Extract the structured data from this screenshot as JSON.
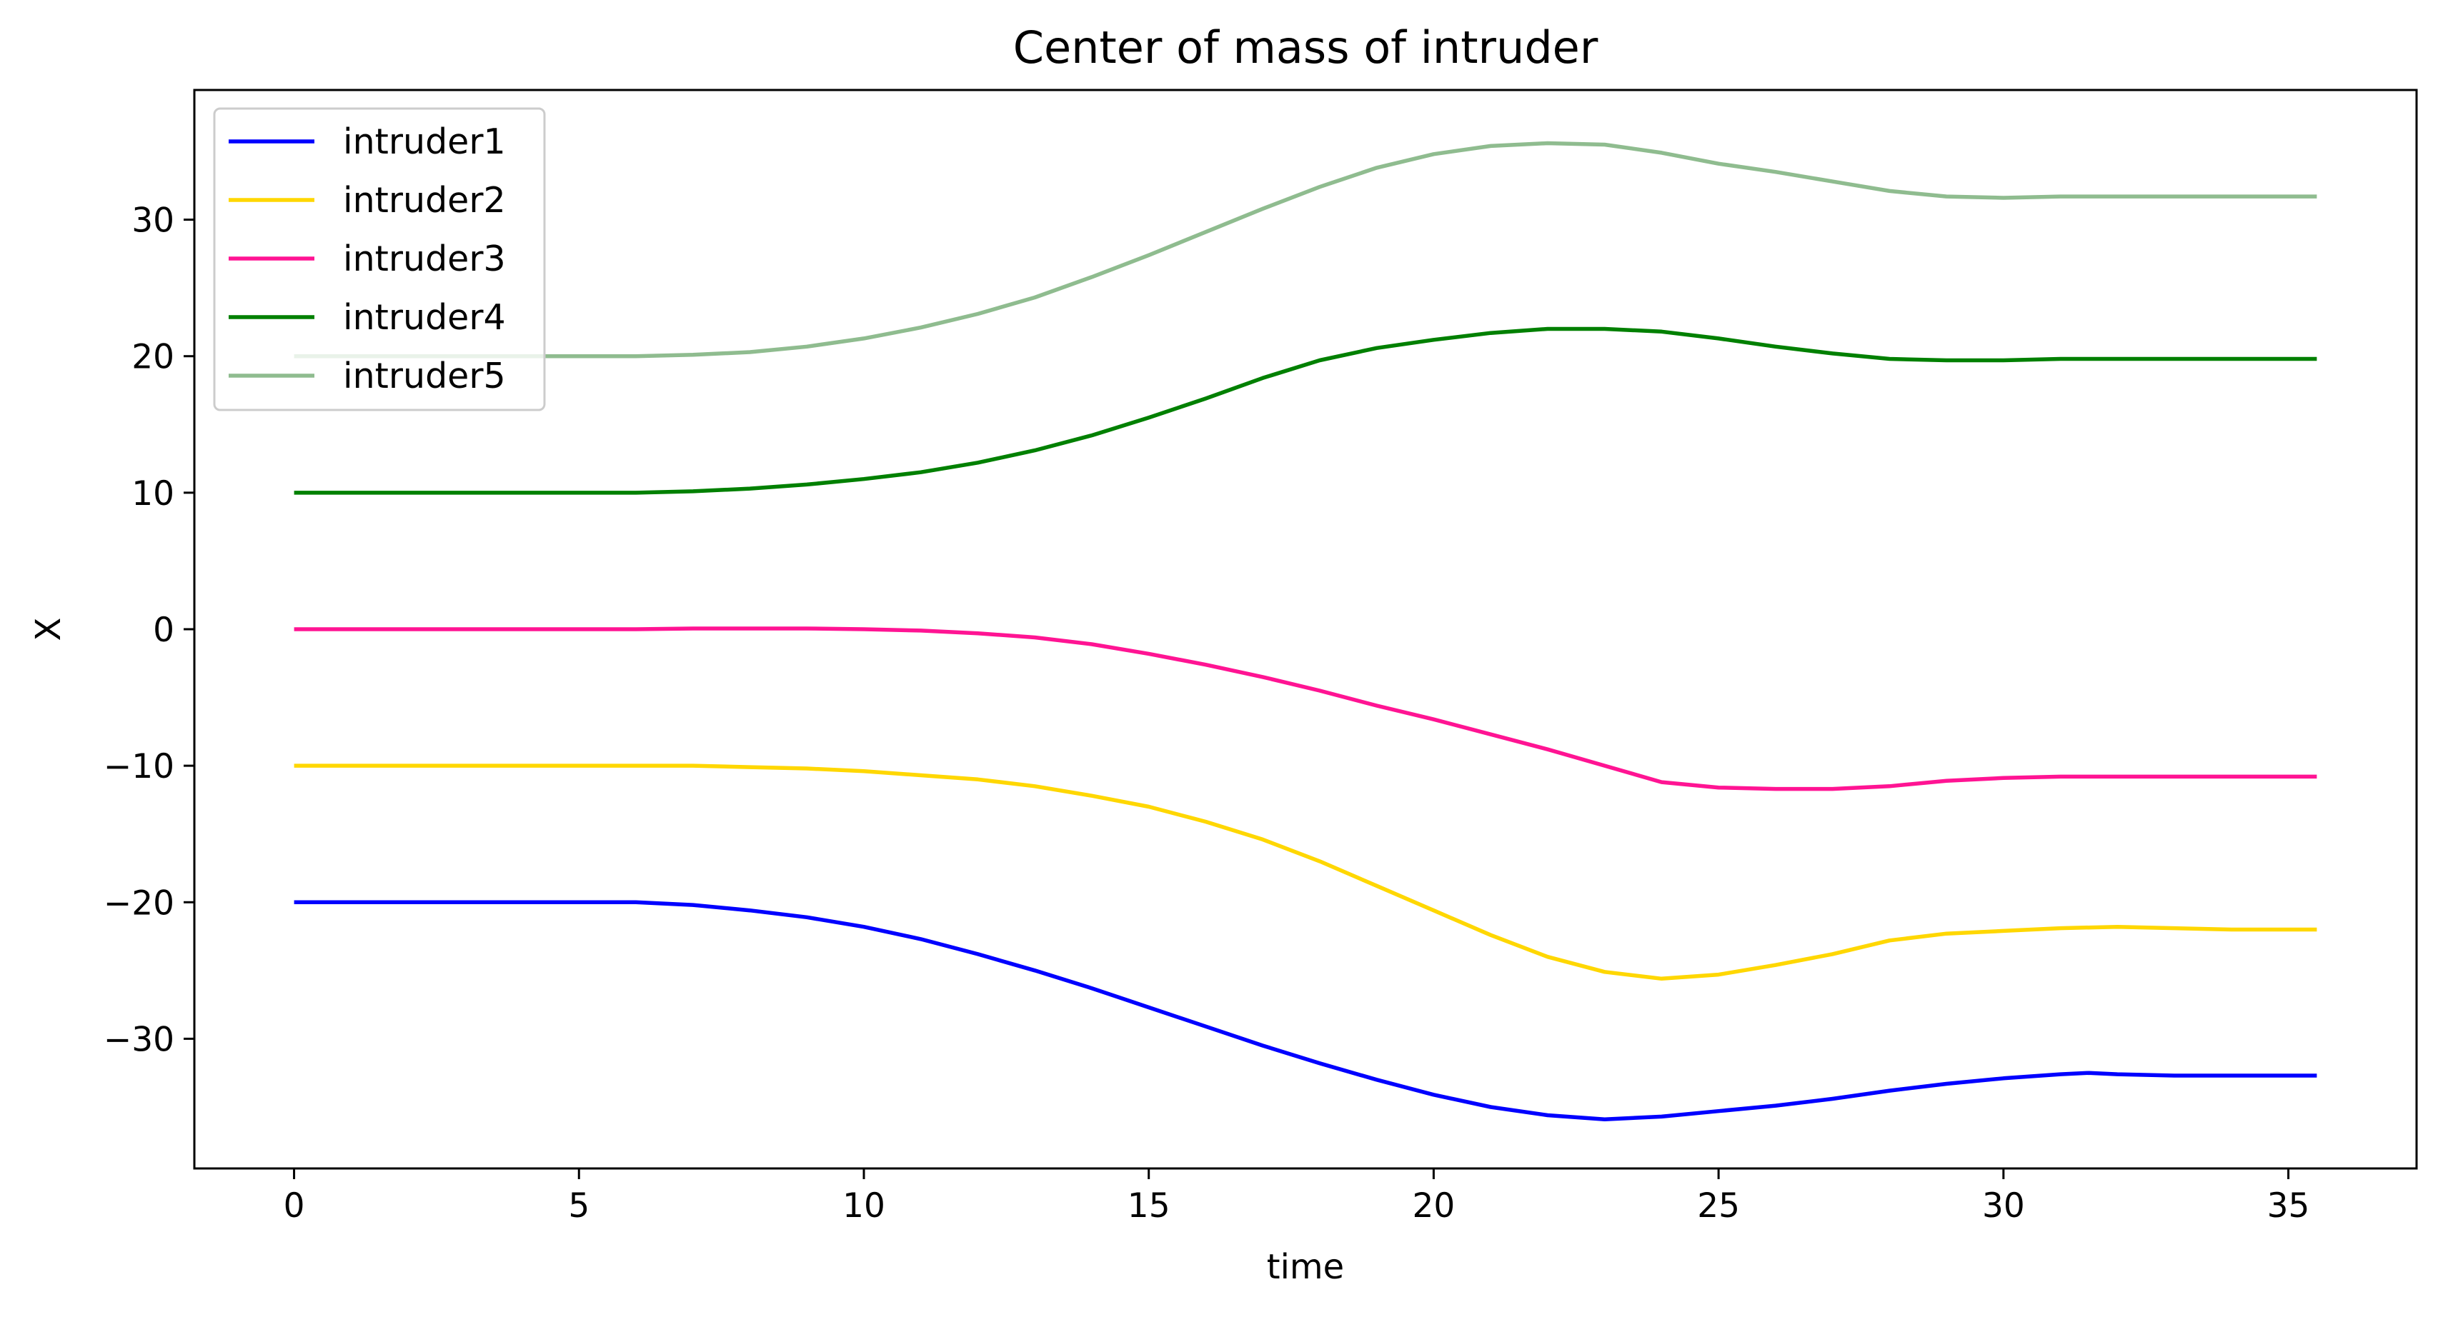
{
  "chart_data": {
    "type": "line",
    "title": "Center of mass of intruder",
    "xlabel": "time",
    "ylabel": "X",
    "xlim": [
      -1.75,
      37.25
    ],
    "ylim": [
      -39.5,
      39.5
    ],
    "xticks": [
      0,
      5,
      10,
      15,
      20,
      25,
      30,
      35
    ],
    "yticks": [
      -30,
      -20,
      -10,
      0,
      10,
      20,
      30
    ],
    "xtick_labels": [
      "0",
      "5",
      "10",
      "15",
      "20",
      "25",
      "30",
      "35"
    ],
    "ytick_labels": [
      "−30",
      "−20",
      "−10",
      "0",
      "10",
      "20",
      "30"
    ],
    "grid": false,
    "legend_position": "upper-left",
    "series": [
      {
        "name": "intruder1",
        "color": "#0000ff",
        "x": [
          0,
          2,
          4,
          6,
          7,
          8,
          9,
          10,
          11,
          12,
          13,
          14,
          15,
          16,
          17,
          18,
          19,
          20,
          21,
          22,
          23,
          24,
          25,
          26,
          27,
          28,
          29,
          30,
          31,
          31.5,
          32,
          33,
          34,
          35,
          35.5
        ],
        "y": [
          -20,
          -20,
          -20,
          -20,
          -20.2,
          -20.6,
          -21.1,
          -21.8,
          -22.7,
          -23.8,
          -25.0,
          -26.3,
          -27.7,
          -29.1,
          -30.5,
          -31.8,
          -33.0,
          -34.1,
          -35.0,
          -35.6,
          -35.9,
          -35.7,
          -35.3,
          -34.9,
          -34.4,
          -33.8,
          -33.3,
          -32.9,
          -32.6,
          -32.5,
          -32.6,
          -32.7,
          -32.7,
          -32.7,
          -32.7
        ]
      },
      {
        "name": "intruder2",
        "color": "#ffd700",
        "x": [
          0,
          2,
          4,
          6,
          7,
          8,
          9,
          10,
          11,
          12,
          13,
          14,
          15,
          16,
          17,
          18,
          19,
          20,
          21,
          22,
          23,
          24,
          25,
          26,
          27,
          28,
          29,
          30,
          31,
          32,
          33,
          34,
          35,
          35.5
        ],
        "y": [
          -10,
          -10,
          -10,
          -10,
          -10,
          -10.1,
          -10.2,
          -10.4,
          -10.7,
          -11.0,
          -11.5,
          -12.2,
          -13.0,
          -14.1,
          -15.4,
          -17.0,
          -18.8,
          -20.6,
          -22.4,
          -24.0,
          -25.1,
          -25.6,
          -25.3,
          -24.6,
          -23.8,
          -22.8,
          -22.3,
          -22.1,
          -21.9,
          -21.8,
          -21.9,
          -22.0,
          -22.0,
          -22.0
        ]
      },
      {
        "name": "intruder3",
        "color": "#ff1493",
        "x": [
          0,
          2,
          4,
          6,
          7,
          8,
          9,
          10,
          11,
          12,
          13,
          14,
          15,
          16,
          17,
          18,
          19,
          20,
          21,
          22,
          23,
          24,
          25,
          26,
          27,
          28,
          29,
          30,
          31,
          32,
          33,
          34,
          35,
          35.5
        ],
        "y": [
          0,
          0,
          0,
          0,
          0.05,
          0.05,
          0.05,
          0,
          -0.1,
          -0.3,
          -0.6,
          -1.1,
          -1.8,
          -2.6,
          -3.5,
          -4.5,
          -5.6,
          -6.6,
          -7.7,
          -8.8,
          -10.0,
          -11.2,
          -11.6,
          -11.7,
          -11.7,
          -11.5,
          -11.1,
          -10.9,
          -10.8,
          -10.8,
          -10.8,
          -10.8,
          -10.8,
          -10.8
        ]
      },
      {
        "name": "intruder4",
        "color": "#008000",
        "x": [
          0,
          2,
          4,
          6,
          7,
          8,
          9,
          10,
          11,
          12,
          13,
          14,
          15,
          16,
          17,
          18,
          19,
          20,
          21,
          22,
          23,
          24,
          25,
          26,
          27,
          28,
          29,
          30,
          31,
          32,
          33,
          34,
          35,
          35.5
        ],
        "y": [
          10,
          10,
          10,
          10,
          10.1,
          10.3,
          10.6,
          11.0,
          11.5,
          12.2,
          13.1,
          14.2,
          15.5,
          16.9,
          18.4,
          19.7,
          20.6,
          21.2,
          21.7,
          22.0,
          22.0,
          21.8,
          21.3,
          20.7,
          20.2,
          19.8,
          19.7,
          19.7,
          19.8,
          19.8,
          19.8,
          19.8,
          19.8,
          19.8
        ]
      },
      {
        "name": "intruder5",
        "color": "#8fbc8f",
        "x": [
          0,
          2,
          4,
          6,
          7,
          8,
          9,
          10,
          11,
          12,
          13,
          14,
          15,
          16,
          17,
          18,
          19,
          20,
          21,
          22,
          23,
          24,
          25,
          26,
          27,
          28,
          29,
          30,
          31,
          32,
          33,
          34,
          35,
          35.5
        ],
        "y": [
          20,
          20,
          20,
          20,
          20.1,
          20.3,
          20.7,
          21.3,
          22.1,
          23.1,
          24.3,
          25.8,
          27.4,
          29.1,
          30.8,
          32.4,
          33.8,
          34.8,
          35.4,
          35.6,
          35.5,
          34.9,
          34.1,
          33.5,
          32.8,
          32.1,
          31.7,
          31.6,
          31.7,
          31.7,
          31.7,
          31.7,
          31.7,
          31.7
        ]
      }
    ]
  }
}
